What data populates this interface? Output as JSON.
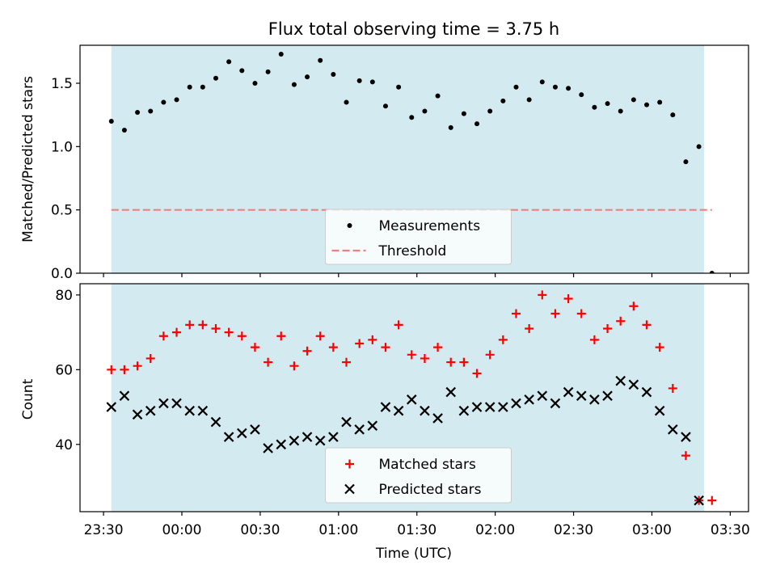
{
  "colors": {
    "shade": "#d3eaf0",
    "threshold": "#f08080",
    "measurement": "#000000",
    "matched": "#ff0000",
    "predicted": "#000000"
  },
  "chart_data": [
    {
      "type": "scatter",
      "title": "Flux total observing time = 3.75 h",
      "xlabel": "",
      "ylabel": "Matched/Predicted stars",
      "xlim": [
        "23:21",
        "03:37"
      ],
      "ylim": [
        0.0,
        1.8
      ],
      "yticks": [
        0.0,
        0.5,
        1.0,
        1.5
      ],
      "ytick_labels": [
        "0.0",
        "0.5",
        "1.0",
        "1.5"
      ],
      "xticks": [
        "23:30",
        "00:00",
        "00:30",
        "01:00",
        "01:30",
        "02:00",
        "02:30",
        "03:00",
        "03:30"
      ],
      "shaded_span": [
        "23:33",
        "03:20"
      ],
      "legend_position": "lower center",
      "series": [
        {
          "name": "Measurements",
          "style": "dot",
          "x": [
            "23:33",
            "23:38",
            "23:43",
            "23:48",
            "23:53",
            "23:58",
            "00:03",
            "00:08",
            "00:13",
            "00:18",
            "00:23",
            "00:28",
            "00:33",
            "00:38",
            "00:43",
            "00:48",
            "00:53",
            "00:58",
            "01:03",
            "01:08",
            "01:13",
            "01:18",
            "01:23",
            "01:28",
            "01:33",
            "01:38",
            "01:43",
            "01:48",
            "01:53",
            "01:58",
            "02:03",
            "02:08",
            "02:13",
            "02:18",
            "02:23",
            "02:28",
            "02:33",
            "02:38",
            "02:43",
            "02:48",
            "02:53",
            "02:58",
            "03:03",
            "03:08",
            "03:13",
            "03:18",
            "03:23"
          ],
          "y": [
            1.2,
            1.13,
            1.27,
            1.28,
            1.35,
            1.37,
            1.47,
            1.47,
            1.54,
            1.67,
            1.6,
            1.5,
            1.59,
            1.73,
            1.49,
            1.55,
            1.68,
            1.57,
            1.35,
            1.52,
            1.51,
            1.32,
            1.47,
            1.23,
            1.28,
            1.4,
            1.15,
            1.26,
            1.18,
            1.28,
            1.36,
            1.47,
            1.37,
            1.51,
            1.47,
            1.46,
            1.41,
            1.31,
            1.34,
            1.28,
            1.37,
            1.33,
            1.35,
            1.25,
            0.88,
            1.0,
            0.0
          ]
        },
        {
          "name": "Threshold",
          "style": "dashed",
          "x": [
            "23:33",
            "03:23"
          ],
          "y": [
            0.5,
            0.5
          ]
        }
      ]
    },
    {
      "type": "scatter",
      "title": "",
      "xlabel": "Time (UTC)",
      "ylabel": "Count",
      "xlim": [
        "23:21",
        "03:37"
      ],
      "ylim": [
        22,
        83
      ],
      "yticks": [
        40,
        60,
        80
      ],
      "ytick_labels": [
        "40",
        "60",
        "80"
      ],
      "xticks": [
        "23:30",
        "00:00",
        "00:30",
        "01:00",
        "01:30",
        "02:00",
        "02:30",
        "03:00",
        "03:30"
      ],
      "xtick_labels": [
        "23:30",
        "00:00",
        "00:30",
        "01:00",
        "01:30",
        "02:00",
        "02:30",
        "03:00",
        "03:30"
      ],
      "shaded_span": [
        "23:33",
        "03:20"
      ],
      "legend_position": "lower center",
      "series": [
        {
          "name": "Matched stars",
          "style": "plus",
          "x": [
            "23:33",
            "23:38",
            "23:43",
            "23:48",
            "23:53",
            "23:58",
            "00:03",
            "00:08",
            "00:13",
            "00:18",
            "00:23",
            "00:28",
            "00:33",
            "00:38",
            "00:43",
            "00:48",
            "00:53",
            "00:58",
            "01:03",
            "01:08",
            "01:13",
            "01:18",
            "01:23",
            "01:28",
            "01:33",
            "01:38",
            "01:43",
            "01:48",
            "01:53",
            "01:58",
            "02:03",
            "02:08",
            "02:13",
            "02:18",
            "02:23",
            "02:28",
            "02:33",
            "02:38",
            "02:43",
            "02:48",
            "02:53",
            "02:58",
            "03:03",
            "03:08",
            "03:13",
            "03:18",
            "03:23"
          ],
          "y": [
            60,
            60,
            61,
            63,
            69,
            70,
            72,
            72,
            71,
            70,
            69,
            66,
            62,
            69,
            61,
            65,
            69,
            66,
            62,
            67,
            68,
            66,
            72,
            64,
            63,
            66,
            62,
            62,
            59,
            64,
            68,
            75,
            71,
            80,
            75,
            79,
            75,
            68,
            71,
            73,
            77,
            72,
            66,
            55,
            37,
            25,
            25
          ]
        },
        {
          "name": "Predicted stars",
          "style": "x",
          "x": [
            "23:33",
            "23:38",
            "23:43",
            "23:48",
            "23:53",
            "23:58",
            "00:03",
            "00:08",
            "00:13",
            "00:18",
            "00:23",
            "00:28",
            "00:33",
            "00:38",
            "00:43",
            "00:48",
            "00:53",
            "00:58",
            "01:03",
            "01:08",
            "01:13",
            "01:18",
            "01:23",
            "01:28",
            "01:33",
            "01:38",
            "01:43",
            "01:48",
            "01:53",
            "01:58",
            "02:03",
            "02:08",
            "02:13",
            "02:18",
            "02:23",
            "02:28",
            "02:33",
            "02:38",
            "02:43",
            "02:48",
            "02:53",
            "02:58",
            "03:03",
            "03:08",
            "03:13",
            "03:18"
          ],
          "y": [
            50,
            53,
            48,
            49,
            51,
            51,
            49,
            49,
            46,
            42,
            43,
            44,
            39,
            40,
            41,
            42,
            41,
            42,
            46,
            44,
            45,
            50,
            49,
            52,
            49,
            47,
            54,
            49,
            50,
            50,
            50,
            51,
            52,
            53,
            51,
            54,
            53,
            52,
            53,
            57,
            56,
            54,
            49,
            44,
            42,
            25
          ]
        }
      ]
    }
  ]
}
